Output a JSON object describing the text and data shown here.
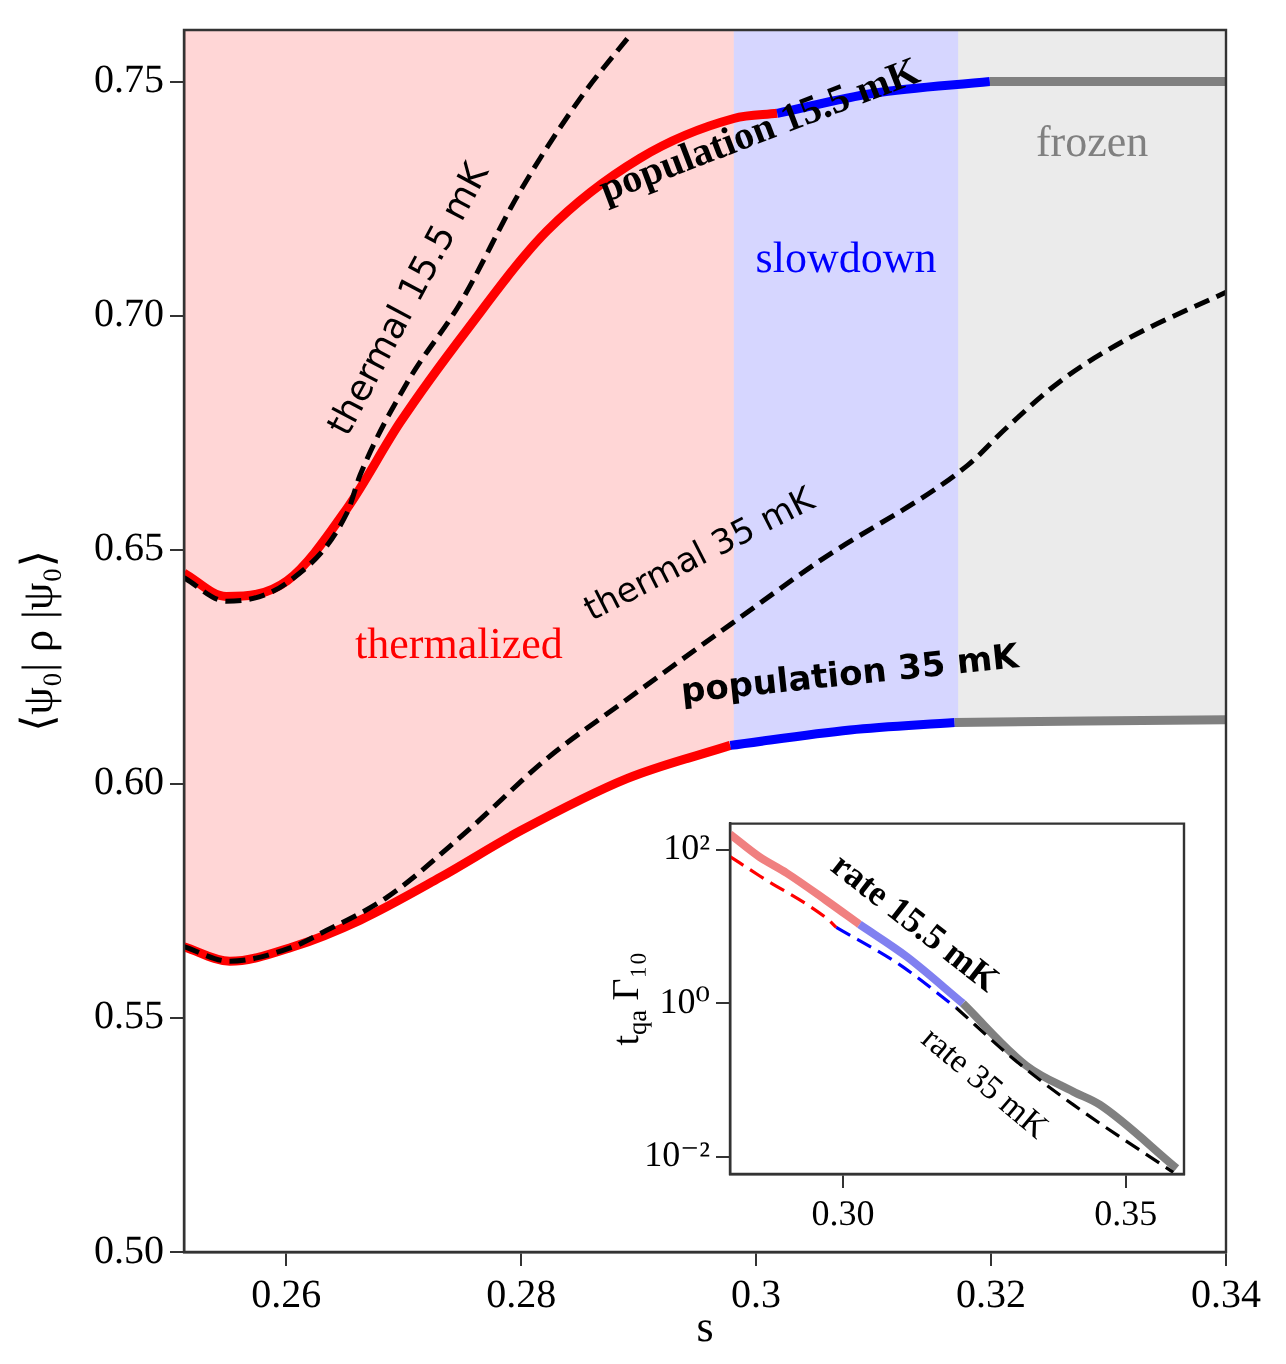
{
  "chart_data": [
    {
      "type": "line",
      "xlabel": "s",
      "ylabel": "⟨ψ₀| ρ |ψ₀⟩",
      "xlim": [
        0.2513,
        0.34
      ],
      "ylim": [
        0.5,
        0.761
      ],
      "xticks": [
        0.26,
        0.28,
        {
          "value": 0.3,
          "label": "0.3"
        },
        0.32,
        0.34
      ],
      "yticks": [
        {
          "value": 0.5,
          "label": "0.50"
        },
        {
          "value": 0.55,
          "label": "0.55"
        },
        {
          "value": 0.6,
          "label": "0.60"
        },
        {
          "value": 0.65,
          "label": "0.65"
        },
        {
          "value": 0.7,
          "label": "0.70"
        },
        {
          "value": 0.75,
          "label": "0.75"
        }
      ],
      "grid": false,
      "legend": false,
      "marker": "none",
      "series": [
        {
          "color": "#ff0000",
          "x": [
            0.2513,
            0.2549,
            0.2601,
            0.2652,
            0.2697,
            0.2754,
            0.2822,
            0.2901,
            0.2981,
            0.3018
          ],
          "values": [
            0.645,
            0.64,
            0.6434,
            0.6589,
            0.6772,
            0.697,
            0.7181,
            0.7336,
            0.7421,
            0.7432
          ]
        },
        {
          "color": "#0000ff",
          "x": [
            0.3018,
            0.31,
            0.3199
          ],
          "values": [
            0.7432,
            0.7475,
            0.75
          ]
        },
        {
          "color": "#808080",
          "x": [
            0.3199,
            0.34
          ],
          "values": [
            0.75,
            0.75
          ]
        },
        {
          "color": "#000000",
          "line_style": "dashed",
          "x": [
            0.2513,
            0.2549,
            0.2601,
            0.2652,
            0.2663,
            0.2703,
            0.2748,
            0.2799,
            0.285,
            0.2893
          ],
          "values": [
            0.644,
            0.639,
            0.643,
            0.658,
            0.666,
            0.6857,
            0.7026,
            0.7265,
            0.7463,
            0.76
          ]
        },
        {
          "color": "#ff0000",
          "x": [
            0.2513,
            0.2552,
            0.2606,
            0.2663,
            0.2731,
            0.2799,
            0.289,
            0.2978
          ],
          "values": [
            0.5652,
            0.5621,
            0.5652,
            0.5709,
            0.58,
            0.5899,
            0.6011,
            0.6082
          ]
        },
        {
          "color": "#0000ff",
          "x": [
            0.2978,
            0.308,
            0.3169
          ],
          "values": [
            0.6082,
            0.6115,
            0.6131
          ]
        },
        {
          "color": "#808080",
          "x": [
            0.3169,
            0.34
          ],
          "values": [
            0.6131,
            0.6137
          ]
        },
        {
          "color": "#000000",
          "line_style": "dashed",
          "x": [
            0.2513,
            0.2552,
            0.2606,
            0.2629,
            0.2686,
            0.2754,
            0.2822,
            0.289,
            0.2978,
            0.3054,
            0.318,
            0.3213,
            0.3259,
            0.3316,
            0.34
          ],
          "values": [
            0.5652,
            0.5621,
            0.5652,
            0.568,
            0.5758,
            0.5899,
            0.6054,
            0.618,
            0.634,
            0.6476,
            0.668,
            0.676,
            0.686,
            0.695,
            0.705
          ]
        }
      ],
      "bands": [
        {
          "axis": "x",
          "from": 0.2513,
          "to": 0.2981,
          "label": "thermalized",
          "color": "#ff0000"
        },
        {
          "axis": "x",
          "from": 0.2981,
          "to": 0.3172,
          "label": "slowdown",
          "color": "#0000ff"
        },
        {
          "axis": "x",
          "from": 0.3172,
          "to": 0.34,
          "label": "frozen",
          "color": "#808080"
        }
      ],
      "annotations": [
        "population 15.5 mK",
        "thermal 15.5 mK",
        "thermal 35 mK",
        "population 35 mK"
      ]
    },
    {
      "type": "line",
      "ylabel": "t$_{qa}$ Γ₁₀",
      "log": "y",
      "xlim": [
        0.28,
        0.3603
      ],
      "ylim": [
        0.006,
        220
      ],
      "xticks": [
        {
          "value": 0.3,
          "label": "0.30"
        },
        0.35
      ],
      "yticks": [
        {
          "value": 0.01,
          "label": "10⁻²"
        },
        {
          "value": 1,
          "label": "10⁰"
        },
        {
          "value": 100,
          "label": "10²"
        }
      ],
      "grid": false,
      "legend": false,
      "marker": "none",
      "series": [
        {
          "color": "#f08080",
          "x": [
            0.28,
            0.2852,
            0.29,
            0.297,
            0.3029
          ],
          "values": [
            160,
            81,
            50,
            22,
            10.7
          ]
        },
        {
          "color": "#8080f0",
          "x": [
            0.3029,
            0.3112,
            0.3212
          ],
          "values": [
            10.7,
            4.1,
            1
          ]
        },
        {
          "color": "#808080",
          "x": [
            0.3212,
            0.3324,
            0.3407,
            0.3454,
            0.359
          ],
          "values": [
            1,
            0.155,
            0.071,
            0.048,
            0.0071
          ]
        },
        {
          "color": "#ff0000",
          "line_style": "dashed",
          "x": [
            0.28,
            0.2852,
            0.297,
            0.2988
          ],
          "values": [
            82,
            46,
            13,
            9.8
          ]
        },
        {
          "color": "#0000ff",
          "line_style": "dashed",
          "x": [
            0.2988,
            0.31,
            0.32
          ],
          "values": [
            9.8,
            3.2,
            0.88
          ]
        },
        {
          "color": "#000000",
          "line_style": "dashed",
          "x": [
            0.32,
            0.3301,
            0.3407,
            0.3584
          ],
          "values": [
            0.88,
            0.19,
            0.048,
            0.0063
          ]
        }
      ],
      "annotations": [
        "rate 15.5 mK",
        "rate 35 mK"
      ]
    }
  ]
}
